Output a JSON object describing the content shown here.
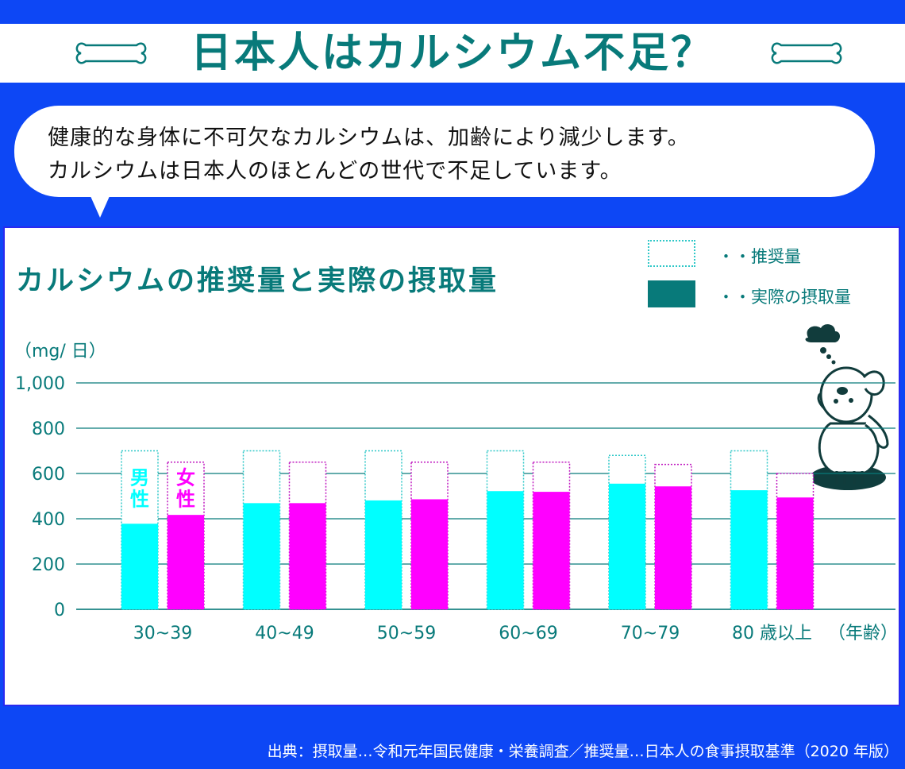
{
  "title": "日本人はカルシウム不足？",
  "intro": {
    "line1": "健康的な身体に不可欠なカルシウムは、加齢により減少します。",
    "line2": "カルシウムは日本人のほとんどの世代で不足しています。"
  },
  "legend": {
    "recommended": "・・推奨量",
    "actual": "・・実際の摂取量"
  },
  "colors": {
    "male": "#00ffff",
    "female": "#ff00ff",
    "accent": "#087a7a",
    "background": "#0d47f5"
  },
  "chart_data": {
    "type": "bar",
    "title": "カルシウムの推奨量と実際の摂取量",
    "ylabel": "（mg/ 日）",
    "xlabel": "（年齢）",
    "ylim": [
      0,
      1000
    ],
    "yticks": [
      "0",
      "200",
      "400",
      "600",
      "800",
      "1,000"
    ],
    "categories": [
      "30~39",
      "40~49",
      "50~59",
      "60~69",
      "70~79",
      "80 歳以上"
    ],
    "bar_labels": {
      "male": "男性",
      "female": "女性"
    },
    "series": [
      {
        "name": "男性",
        "measure": "実際の摂取量",
        "values": [
          378,
          469,
          481,
          522,
          555,
          526
        ]
      },
      {
        "name": "女性",
        "measure": "実際の摂取量",
        "values": [
          417,
          469,
          486,
          519,
          543,
          494
        ]
      },
      {
        "name": "男性",
        "measure": "推奨量",
        "values": [
          700,
          700,
          700,
          700,
          680,
          700
        ]
      },
      {
        "name": "女性",
        "measure": "推奨量",
        "values": [
          650,
          650,
          650,
          650,
          640,
          600
        ]
      }
    ],
    "grid": true
  },
  "source": "出典：摂取量…令和元年国民健康・栄養調査／推奨量…日本人の食事摂取基準（2020 年版）"
}
